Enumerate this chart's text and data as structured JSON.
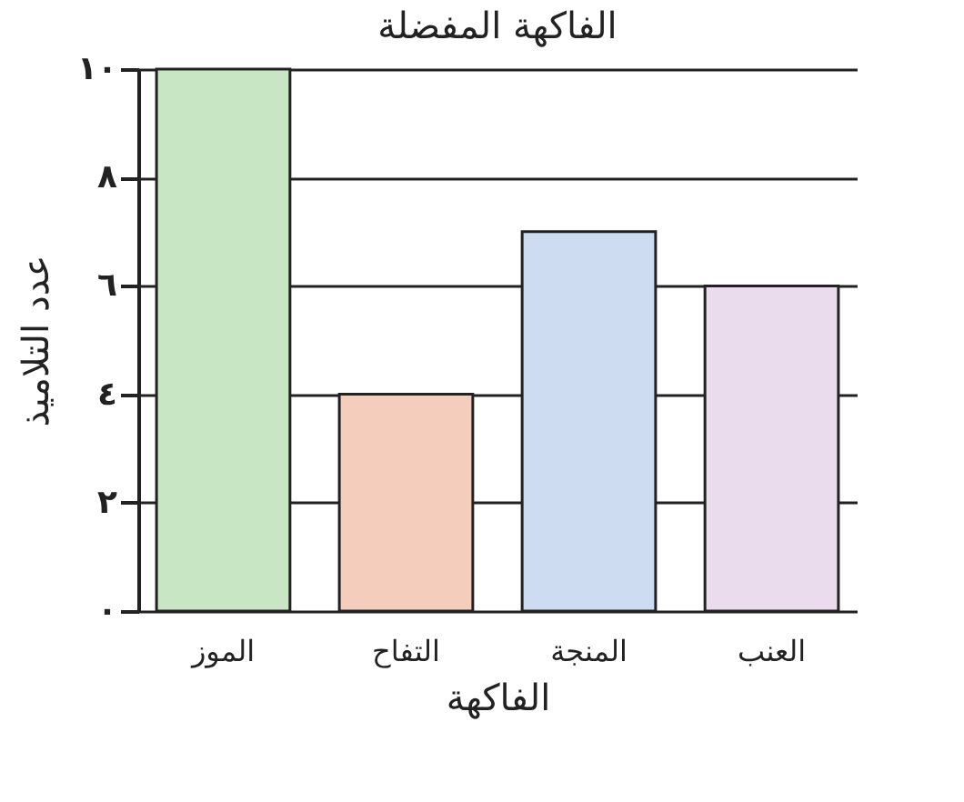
{
  "chart_data": {
    "type": "bar",
    "title": "الفاكهة المفضلة",
    "xlabel": "الفاكهة",
    "ylabel": "عدد التلاميذ",
    "categories": [
      "الموز",
      "التفاح",
      "المنجة",
      "العنب"
    ],
    "values": [
      10,
      4,
      7,
      6
    ],
    "colors": [
      "#c8e6c4",
      "#f5cdbd",
      "#cddcf0",
      "#eadcec"
    ],
    "ylim": [
      0,
      10
    ],
    "yticks": [
      {
        "value": 0,
        "label": "٠"
      },
      {
        "value": 2,
        "label": "٢"
      },
      {
        "value": 4,
        "label": "٤"
      },
      {
        "value": 6,
        "label": "٦"
      },
      {
        "value": 8,
        "label": "٨"
      },
      {
        "value": 10,
        "label": "١٠"
      }
    ],
    "grid": "y",
    "legend": false
  }
}
